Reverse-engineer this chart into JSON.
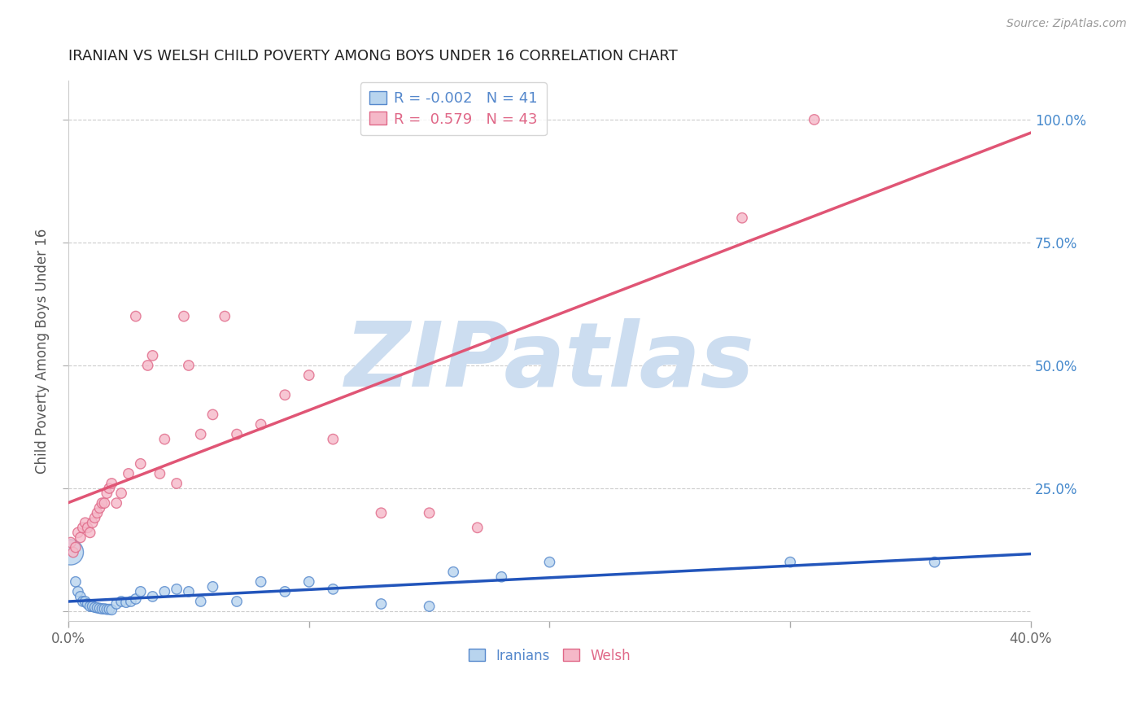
{
  "title": "IRANIAN VS WELSH CHILD POVERTY AMONG BOYS UNDER 16 CORRELATION CHART",
  "source": "Source: ZipAtlas.com",
  "ylabel": "Child Poverty Among Boys Under 16",
  "xlim": [
    0.0,
    0.4
  ],
  "ylim": [
    -0.02,
    1.08
  ],
  "yticks": [
    0.0,
    0.25,
    0.5,
    0.75,
    1.0
  ],
  "ytick_labels_right": [
    "",
    "25.0%",
    "50.0%",
    "75.0%",
    "100.0%"
  ],
  "xticks": [
    0.0,
    0.1,
    0.2,
    0.3,
    0.4
  ],
  "xtick_labels": [
    "0.0%",
    "",
    "",
    "",
    "40.0%"
  ],
  "iranians_color": "#b8d4ee",
  "welsh_color": "#f5b8c8",
  "iranians_edge_color": "#5588cc",
  "welsh_edge_color": "#e06888",
  "regression_iranian_color": "#2255bb",
  "regression_welsh_color": "#e05575",
  "legend_iranian_R": "-0.002",
  "legend_iranian_N": "41",
  "legend_welsh_R": "0.579",
  "legend_welsh_N": "43",
  "watermark": "ZIPatlas",
  "watermark_color": "#ccddf0",
  "iranians_x": [
    0.001,
    0.003,
    0.004,
    0.005,
    0.006,
    0.007,
    0.008,
    0.009,
    0.01,
    0.011,
    0.012,
    0.013,
    0.014,
    0.015,
    0.016,
    0.017,
    0.018,
    0.02,
    0.022,
    0.024,
    0.026,
    0.028,
    0.03,
    0.035,
    0.04,
    0.045,
    0.05,
    0.055,
    0.06,
    0.07,
    0.08,
    0.09,
    0.1,
    0.11,
    0.13,
    0.15,
    0.16,
    0.18,
    0.2,
    0.3,
    0.36
  ],
  "iranians_y": [
    0.12,
    0.06,
    0.04,
    0.03,
    0.02,
    0.02,
    0.015,
    0.01,
    0.01,
    0.008,
    0.007,
    0.006,
    0.005,
    0.005,
    0.004,
    0.004,
    0.003,
    0.015,
    0.02,
    0.018,
    0.02,
    0.025,
    0.04,
    0.03,
    0.04,
    0.045,
    0.04,
    0.02,
    0.05,
    0.02,
    0.06,
    0.04,
    0.06,
    0.045,
    0.015,
    0.01,
    0.08,
    0.07,
    0.1,
    0.1,
    0.1
  ],
  "iranians_sizes": [
    500,
    80,
    80,
    80,
    80,
    80,
    80,
    80,
    80,
    80,
    80,
    80,
    80,
    80,
    80,
    80,
    80,
    80,
    80,
    80,
    80,
    80,
    80,
    80,
    80,
    80,
    80,
    80,
    80,
    80,
    80,
    80,
    80,
    80,
    80,
    80,
    80,
    80,
    80,
    80,
    80
  ],
  "welsh_x": [
    0.001,
    0.002,
    0.003,
    0.004,
    0.005,
    0.006,
    0.007,
    0.008,
    0.009,
    0.01,
    0.011,
    0.012,
    0.013,
    0.014,
    0.015,
    0.016,
    0.017,
    0.018,
    0.02,
    0.022,
    0.025,
    0.028,
    0.03,
    0.033,
    0.035,
    0.038,
    0.04,
    0.045,
    0.048,
    0.05,
    0.055,
    0.06,
    0.065,
    0.07,
    0.08,
    0.09,
    0.1,
    0.11,
    0.13,
    0.15,
    0.17,
    0.28,
    0.31
  ],
  "welsh_y": [
    0.14,
    0.12,
    0.13,
    0.16,
    0.15,
    0.17,
    0.18,
    0.17,
    0.16,
    0.18,
    0.19,
    0.2,
    0.21,
    0.22,
    0.22,
    0.24,
    0.25,
    0.26,
    0.22,
    0.24,
    0.28,
    0.6,
    0.3,
    0.5,
    0.52,
    0.28,
    0.35,
    0.26,
    0.6,
    0.5,
    0.36,
    0.4,
    0.6,
    0.36,
    0.38,
    0.44,
    0.48,
    0.35,
    0.2,
    0.2,
    0.17,
    0.8,
    1.0
  ],
  "welsh_sizes": [
    80,
    80,
    80,
    80,
    80,
    80,
    80,
    80,
    80,
    80,
    80,
    80,
    80,
    80,
    80,
    80,
    80,
    80,
    80,
    80,
    80,
    80,
    80,
    80,
    80,
    80,
    80,
    80,
    80,
    80,
    80,
    80,
    80,
    80,
    80,
    80,
    80,
    80,
    80,
    80,
    80,
    80,
    80
  ],
  "grid_color": "#cccccc",
  "grid_linestyle": "--",
  "spine_color": "#cccccc"
}
